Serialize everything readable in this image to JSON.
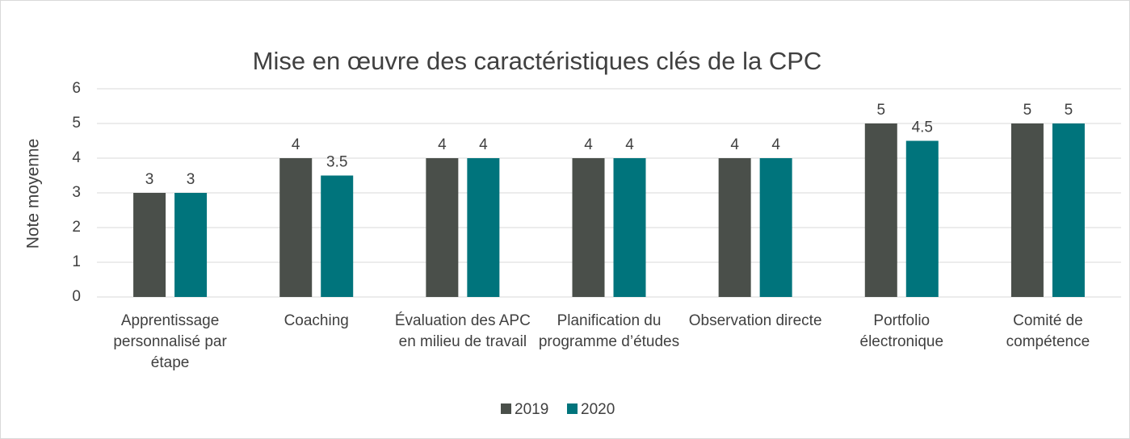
{
  "chart_data": {
    "type": "bar",
    "title": "Mise en œuvre des caractéristiques clés de la CPC",
    "y_label": "Note moyenne",
    "categories": [
      "Apprentissage personnalisé par étape",
      "Coaching",
      "Évaluation des APC en milieu de travail",
      "Planification du programme d’études",
      "Observation directe",
      "Portfolio électronique",
      "Comité de compétence"
    ],
    "series": [
      {
        "name": "2019",
        "color": "#4a4f4a",
        "values": [
          3,
          4,
          4,
          4,
          4,
          5,
          5
        ]
      },
      {
        "name": "2020",
        "color": "#00747c",
        "values": [
          3,
          3.5,
          4,
          4,
          4,
          4.5,
          5
        ]
      }
    ],
    "ylim": [
      0,
      6
    ],
    "yticks": [
      0,
      1,
      2,
      3,
      4,
      5,
      6
    ],
    "grid": true,
    "legend": "bottom"
  }
}
